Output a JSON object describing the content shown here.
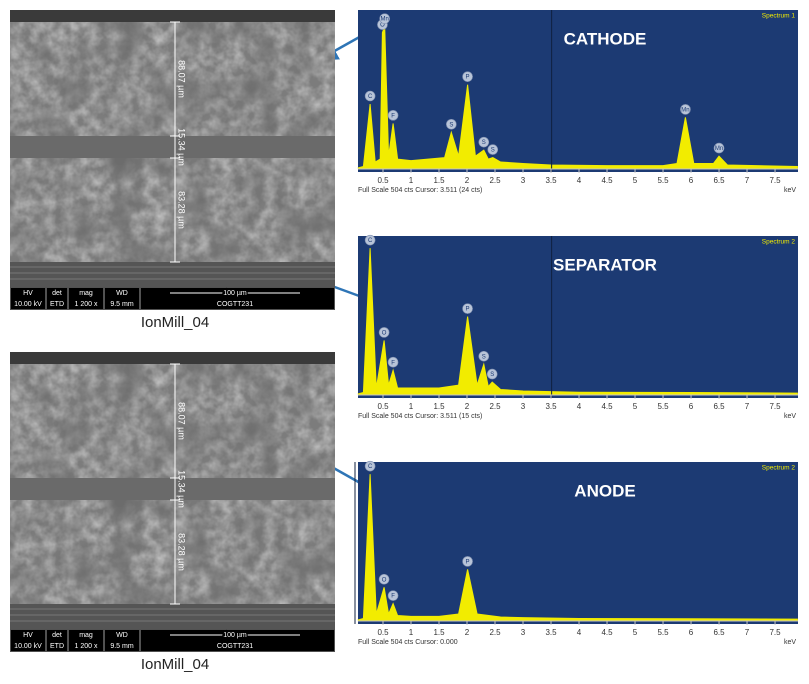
{
  "chart_data": [
    {
      "type": "spectrum",
      "title": "CATHODE",
      "spectrum": "Spectrum 1",
      "footer": "Full Scale 504 cts Cursor: 3.511 (24 cts)",
      "xlabel": "keV",
      "color": "#f2ec00",
      "background": "#1c3a73",
      "cursor": 3.511,
      "xlim": [
        0,
        7.91
      ],
      "ylim": [
        0,
        504
      ],
      "xticks": [
        0.5,
        1,
        1.5,
        2,
        2.5,
        3,
        3.5,
        4,
        4.5,
        5,
        5.5,
        6,
        6.5,
        7,
        7.5
      ],
      "x": [
        0.05,
        0.15,
        0.27,
        0.36,
        0.45,
        0.49,
        0.53,
        0.6,
        0.68,
        0.76,
        1.0,
        1.3,
        1.6,
        1.72,
        1.85,
        2.01,
        2.15,
        2.3,
        2.38,
        2.46,
        2.6,
        3.0,
        3.5,
        4.5,
        5.5,
        5.75,
        5.9,
        6.05,
        6.4,
        6.5,
        6.65,
        7.9
      ],
      "values": [
        0,
        5,
        215,
        20,
        30,
        455,
        475,
        40,
        150,
        30,
        25,
        30,
        35,
        120,
        40,
        280,
        40,
        60,
        30,
        35,
        20,
        15,
        10,
        8,
        8,
        15,
        170,
        15,
        15,
        40,
        10,
        5
      ],
      "point_labels": [
        null,
        null,
        "C",
        null,
        null,
        "O",
        "Mn",
        null,
        "F",
        null,
        null,
        null,
        null,
        "S",
        null,
        "P",
        null,
        "S",
        null,
        "S",
        null,
        null,
        null,
        null,
        null,
        null,
        "Mn",
        null,
        null,
        "Mn",
        null,
        null
      ]
    },
    {
      "type": "spectrum",
      "title": "SEPARATOR",
      "spectrum": "Spectrum 2",
      "footer": "Full Scale 504 cts Cursor: 3.511 (15 cts)",
      "xlabel": "keV",
      "color": "#f2ec00",
      "background": "#1c3a73",
      "cursor": 3.511,
      "xlim": [
        0,
        7.91
      ],
      "ylim": [
        0,
        504
      ],
      "xticks": [
        0.5,
        1,
        1.5,
        2,
        2.5,
        3,
        3.5,
        4,
        4.5,
        5,
        5.5,
        6,
        6.5,
        7,
        7.5
      ],
      "x": [
        0.05,
        0.15,
        0.27,
        0.38,
        0.52,
        0.6,
        0.68,
        0.76,
        1.0,
        1.5,
        1.85,
        2.01,
        2.18,
        2.3,
        2.38,
        2.45,
        2.6,
        3.0,
        4.0,
        6.0,
        7.9
      ],
      "values": [
        0,
        5,
        490,
        20,
        180,
        30,
        80,
        20,
        20,
        20,
        30,
        260,
        30,
        100,
        25,
        40,
        15,
        10,
        6,
        5,
        3
      ],
      "point_labels": [
        null,
        null,
        "C",
        null,
        "O",
        null,
        "F",
        null,
        null,
        null,
        null,
        "P",
        null,
        "S",
        null,
        "S",
        null,
        null,
        null,
        null,
        null
      ]
    },
    {
      "type": "spectrum",
      "title": "ANODE",
      "spectrum": "Spectrum 2",
      "footer": "Full Scale 504 cts Cursor: 0.000",
      "xlabel": "keV",
      "color": "#f2ec00",
      "background": "#1c3a73",
      "cursor": 0,
      "xlim": [
        0,
        7.91
      ],
      "ylim": [
        0,
        504
      ],
      "xticks": [
        0.5,
        1,
        1.5,
        2,
        2.5,
        3,
        3.5,
        4,
        4.5,
        5,
        5.5,
        6,
        6.5,
        7,
        7.5
      ],
      "x": [
        0.05,
        0.15,
        0.27,
        0.38,
        0.52,
        0.6,
        0.68,
        0.76,
        1.0,
        1.5,
        1.85,
        2.01,
        2.18,
        2.6,
        3.0,
        4.0,
        6.0,
        7.9
      ],
      "values": [
        0,
        5,
        490,
        20,
        110,
        20,
        55,
        15,
        12,
        12,
        20,
        170,
        20,
        10,
        8,
        5,
        4,
        3
      ],
      "point_labels": [
        null,
        null,
        "C",
        null,
        "O",
        null,
        "F",
        null,
        null,
        null,
        null,
        "P",
        null,
        null,
        null,
        null,
        null,
        null
      ]
    }
  ],
  "images": [
    {
      "caption": "IonMill_04",
      "measurements": [
        "88.07 µm",
        "15.34 µm",
        "83.28 µm"
      ],
      "info": {
        "hv_label": "HV",
        "hv": "10.00 kV",
        "det_label": "det",
        "det": "ETD",
        "mag_label": "mag",
        "mag": "1 200 x",
        "wd_label": "WD",
        "wd": "9.5 mm",
        "scale": "100 µm",
        "sample": "COGTT231"
      }
    },
    {
      "caption": "IonMill_04",
      "measurements": [
        "88.07 µm",
        "15.34 µm",
        "83.28 µm"
      ],
      "info": {
        "hv_label": "HV",
        "hv": "10.00 kV",
        "det_label": "det",
        "det": "ETD",
        "mag_label": "mag",
        "mag": "1 200 x",
        "wd_label": "WD",
        "wd": "9.5 mm",
        "scale": "100 µm",
        "sample": "COGTT231"
      }
    }
  ]
}
